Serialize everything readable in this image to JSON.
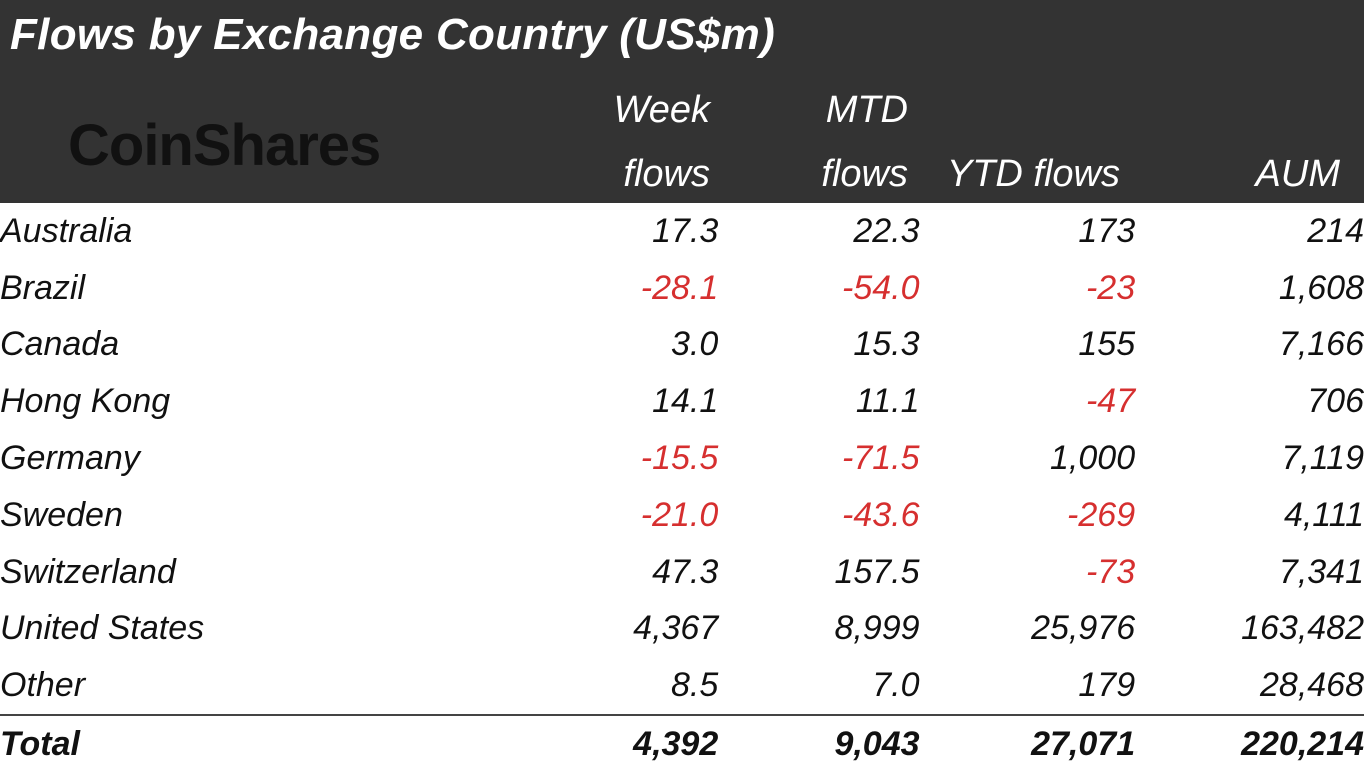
{
  "title": "Flows by Exchange Country (US$m)",
  "logo_text": "CoinShares",
  "chart_data": {
    "type": "table",
    "title": "Flows by Exchange Country (US$m)",
    "columns": [
      {
        "line1": "",
        "line2": ""
      },
      {
        "line1": "Week",
        "line2": "flows"
      },
      {
        "line1": "MTD",
        "line2": "flows"
      },
      {
        "line1": "",
        "line2": "YTD flows"
      },
      {
        "line1": "",
        "line2": "AUM"
      }
    ],
    "rows": [
      {
        "country": "Australia",
        "week": "17.3",
        "mtd": "22.3",
        "ytd": "173",
        "aum": "214"
      },
      {
        "country": "Brazil",
        "week": "-28.1",
        "mtd": "-54.0",
        "ytd": "-23",
        "aum": "1,608"
      },
      {
        "country": "Canada",
        "week": "3.0",
        "mtd": "15.3",
        "ytd": "155",
        "aum": "7,166"
      },
      {
        "country": "Hong Kong",
        "week": "14.1",
        "mtd": "11.1",
        "ytd": "-47",
        "aum": "706"
      },
      {
        "country": "Germany",
        "week": "-15.5",
        "mtd": "-71.5",
        "ytd": "1,000",
        "aum": "7,119"
      },
      {
        "country": "Sweden",
        "week": "-21.0",
        "mtd": "-43.6",
        "ytd": "-269",
        "aum": "4,111"
      },
      {
        "country": "Switzerland",
        "week": "47.3",
        "mtd": "157.5",
        "ytd": "-73",
        "aum": "7,341"
      },
      {
        "country": "United States",
        "week": "4,367",
        "mtd": "8,999",
        "ytd": "25,976",
        "aum": "163,482"
      },
      {
        "country": "Other",
        "week": "8.5",
        "mtd": "7.0",
        "ytd": "179",
        "aum": "28,468"
      }
    ],
    "total": {
      "country": "Total",
      "week": "4,392",
      "mtd": "9,043",
      "ytd": "27,071",
      "aum": "220,214"
    },
    "negative_color": "#d62f2f",
    "header_bg": "#333333"
  }
}
